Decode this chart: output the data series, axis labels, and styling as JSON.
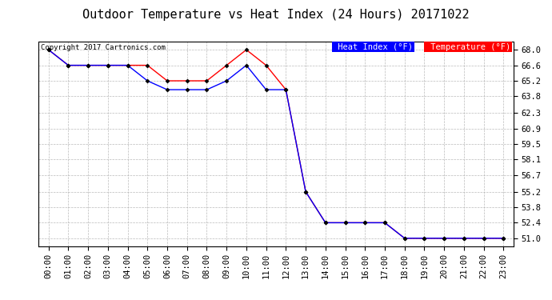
{
  "title": "Outdoor Temperature vs Heat Index (24 Hours) 20171022",
  "copyright": "Copyright 2017 Cartronics.com",
  "yticks": [
    51.0,
    52.4,
    53.8,
    55.2,
    56.7,
    58.1,
    59.5,
    60.9,
    62.3,
    63.8,
    65.2,
    66.6,
    68.0
  ],
  "ylim": [
    50.3,
    68.7
  ],
  "hours": [
    "00:00",
    "01:00",
    "02:00",
    "03:00",
    "04:00",
    "05:00",
    "06:00",
    "07:00",
    "08:00",
    "09:00",
    "10:00",
    "11:00",
    "12:00",
    "13:00",
    "14:00",
    "15:00",
    "16:00",
    "17:00",
    "18:00",
    "19:00",
    "20:00",
    "21:00",
    "22:00",
    "23:00"
  ],
  "temp": [
    68.0,
    66.6,
    66.6,
    66.6,
    66.6,
    66.6,
    65.2,
    65.2,
    65.2,
    66.6,
    68.0,
    66.6,
    64.4,
    55.2,
    52.4,
    52.4,
    52.4,
    52.4,
    51.0,
    51.0,
    51.0,
    51.0,
    51.0,
    51.0
  ],
  "heat_index": [
    68.0,
    66.6,
    66.6,
    66.6,
    66.6,
    65.2,
    64.4,
    64.4,
    64.4,
    65.2,
    66.6,
    64.4,
    64.4,
    55.2,
    52.4,
    52.4,
    52.4,
    52.4,
    51.0,
    51.0,
    51.0,
    51.0,
    51.0,
    51.0
  ],
  "temp_color": "#ff0000",
  "heat_index_color": "#0000ff",
  "bg_color": "#ffffff",
  "grid_color": "#aaaaaa",
  "marker_color": "#000000",
  "legend_heat_bg": "#0000ff",
  "legend_temp_bg": "#ff0000",
  "legend_text_color": "#ffffff",
  "title_fontsize": 11,
  "tick_fontsize": 7.5,
  "copyright_fontsize": 6.5,
  "legend_fontsize": 7.5
}
